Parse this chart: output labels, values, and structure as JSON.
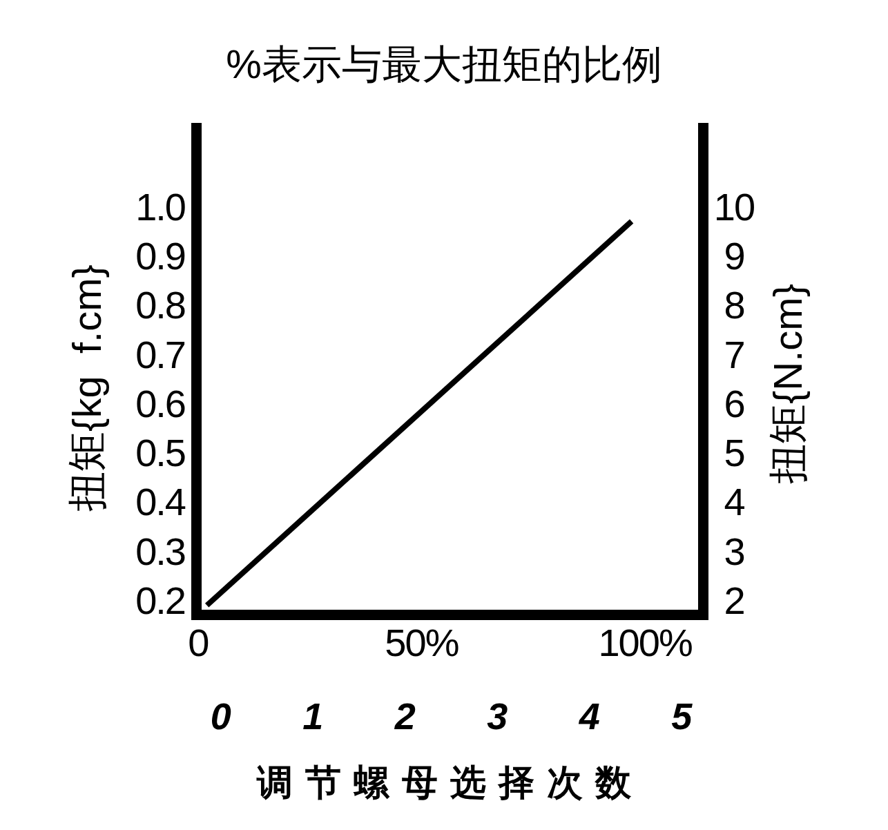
{
  "chart_data": {
    "type": "line",
    "title": "%表示与最大扭矩的比例",
    "xlabel": "调节螺母选择次数",
    "ylabel": "扭矩{kg  f.cm}",
    "y2label": "扭矩{N.cm}",
    "x": [
      2,
      97
    ],
    "series": [
      {
        "color": "#000000",
        "values": [
          0.19,
          0.97
        ]
      }
    ],
    "xlim": [
      -1.5,
      114.2
    ],
    "xticks": [
      0,
      {
        "value": 50,
        "label": "50%"
      },
      {
        "value": 100,
        "label": "100%"
      }
    ],
    "x2lim": [
      -0.32,
      5.29
    ],
    "x2ticks": [
      0,
      1,
      2,
      3,
      4,
      5
    ],
    "ylim": [
      0.16,
      1.17
    ],
    "yticks": [
      0.2,
      0.3,
      0.4,
      0.5,
      0.6,
      0.7,
      0.8,
      0.9,
      {
        "value": 1,
        "label": "1.0"
      }
    ],
    "y2lim": [
      1.6,
      11.7
    ],
    "y2ticks": [
      2,
      3,
      4,
      5,
      6,
      7,
      8,
      9,
      10
    ],
    "marker": "none",
    "line_style": "solid"
  }
}
